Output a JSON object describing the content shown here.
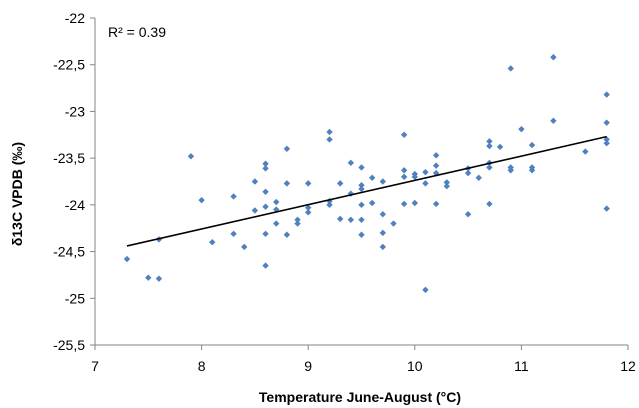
{
  "chart_data": {
    "type": "scatter",
    "xlabel": "Temperature June-August (°C)",
    "ylabel": "δ13C VPDB (‰)",
    "xlim": [
      7,
      12
    ],
    "ylim": [
      -25.5,
      -22
    ],
    "x_ticks": [
      7,
      8,
      9,
      10,
      11,
      12
    ],
    "y_ticks": [
      -22,
      -22.5,
      -23,
      -23.5,
      -24,
      -24.5,
      -25,
      -25.5
    ],
    "x_tick_labels": [
      "7",
      "8",
      "9",
      "10",
      "11",
      "12"
    ],
    "y_tick_labels": [
      "-22",
      "-22,5",
      "-23",
      "-23,5",
      "-24",
      "-24,5",
      "-25",
      "-25,5"
    ],
    "grid": false,
    "annotation": "R² = 0.39",
    "marker_color": "#4f81bd",
    "trendline_color": "#000000",
    "trendline": {
      "x": [
        7.3,
        11.8
      ],
      "y": [
        -24.44,
        -23.27
      ]
    },
    "points": [
      [
        7.3,
        -24.58
      ],
      [
        7.5,
        -24.78
      ],
      [
        7.6,
        -24.79
      ],
      [
        7.6,
        -24.37
      ],
      [
        7.9,
        -23.48
      ],
      [
        8.0,
        -23.95
      ],
      [
        8.1,
        -24.4
      ],
      [
        8.3,
        -23.91
      ],
      [
        8.3,
        -24.31
      ],
      [
        8.4,
        -24.45
      ],
      [
        8.5,
        -23.75
      ],
      [
        8.5,
        -24.06
      ],
      [
        8.6,
        -23.56
      ],
      [
        8.6,
        -23.61
      ],
      [
        8.6,
        -23.86
      ],
      [
        8.6,
        -24.02
      ],
      [
        8.6,
        -24.31
      ],
      [
        8.6,
        -24.65
      ],
      [
        8.7,
        -23.97
      ],
      [
        8.7,
        -24.05
      ],
      [
        8.7,
        -24.2
      ],
      [
        8.8,
        -23.4
      ],
      [
        8.8,
        -23.77
      ],
      [
        8.8,
        -24.32
      ],
      [
        8.9,
        -24.16
      ],
      [
        8.9,
        -24.2
      ],
      [
        9.0,
        -23.77
      ],
      [
        9.0,
        -24.03
      ],
      [
        9.0,
        -24.08
      ],
      [
        9.2,
        -23.22
      ],
      [
        9.2,
        -23.3
      ],
      [
        9.2,
        -23.96
      ],
      [
        9.2,
        -24.0
      ],
      [
        9.3,
        -23.77
      ],
      [
        9.3,
        -24.15
      ],
      [
        9.4,
        -23.55
      ],
      [
        9.4,
        -23.88
      ],
      [
        9.4,
        -24.16
      ],
      [
        9.5,
        -23.6
      ],
      [
        9.5,
        -23.79
      ],
      [
        9.5,
        -23.83
      ],
      [
        9.5,
        -24.0
      ],
      [
        9.5,
        -24.16
      ],
      [
        9.5,
        -24.32
      ],
      [
        9.6,
        -23.71
      ],
      [
        9.6,
        -23.98
      ],
      [
        9.7,
        -23.75
      ],
      [
        9.7,
        -24.1
      ],
      [
        9.7,
        -24.3
      ],
      [
        9.7,
        -24.45
      ],
      [
        9.8,
        -24.2
      ],
      [
        9.9,
        -23.25
      ],
      [
        9.9,
        -23.63
      ],
      [
        9.9,
        -23.7
      ],
      [
        9.9,
        -23.99
      ],
      [
        10.0,
        -23.67
      ],
      [
        10.0,
        -23.7
      ],
      [
        10.0,
        -23.98
      ],
      [
        10.1,
        -23.65
      ],
      [
        10.1,
        -23.77
      ],
      [
        10.1,
        -24.91
      ],
      [
        10.2,
        -23.47
      ],
      [
        10.2,
        -23.58
      ],
      [
        10.2,
        -23.66
      ],
      [
        10.2,
        -23.99
      ],
      [
        10.3,
        -23.76
      ],
      [
        10.3,
        -23.8
      ],
      [
        10.5,
        -23.61
      ],
      [
        10.5,
        -23.66
      ],
      [
        10.5,
        -24.1
      ],
      [
        10.6,
        -23.71
      ],
      [
        10.7,
        -23.32
      ],
      [
        10.7,
        -23.37
      ],
      [
        10.7,
        -23.55
      ],
      [
        10.7,
        -23.6
      ],
      [
        10.7,
        -23.99
      ],
      [
        10.8,
        -23.38
      ],
      [
        10.9,
        -22.54
      ],
      [
        10.9,
        -23.6
      ],
      [
        10.9,
        -23.63
      ],
      [
        11.0,
        -23.19
      ],
      [
        11.1,
        -23.36
      ],
      [
        11.1,
        -23.6
      ],
      [
        11.1,
        -23.63
      ],
      [
        11.3,
        -22.42
      ],
      [
        11.3,
        -23.1
      ],
      [
        11.6,
        -23.43
      ],
      [
        11.8,
        -22.82
      ],
      [
        11.8,
        -23.12
      ],
      [
        11.8,
        -23.3
      ],
      [
        11.8,
        -23.34
      ],
      [
        11.8,
        -24.04
      ]
    ]
  }
}
